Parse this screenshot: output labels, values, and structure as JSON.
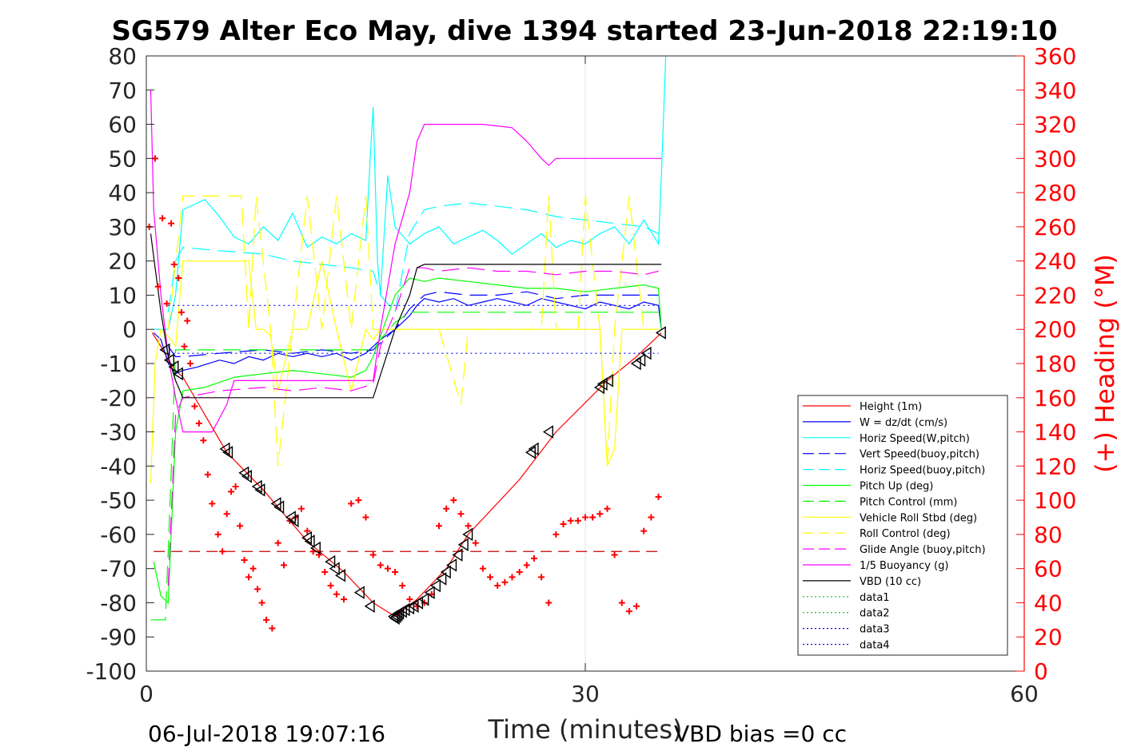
{
  "figure": {
    "footer_left": "06-Jul-2018 19:07:16",
    "footer_right": "VBD bias =0 cc"
  },
  "chart_data": {
    "type": "line",
    "title": "SG579 Alter Eco May, dive 1394 started 23-Jun-2018 22:19:10",
    "xlabel": "Time (minutes)",
    "ylabel": "",
    "y2label": "(+) Heading (°M)",
    "xlim": [
      0,
      60
    ],
    "ylim": [
      -100,
      80
    ],
    "y2lim": [
      0,
      360
    ],
    "xticks": [
      0,
      30,
      60
    ],
    "yticks": [
      -100,
      -90,
      -80,
      -70,
      -60,
      -50,
      -40,
      -30,
      -20,
      -10,
      0,
      10,
      20,
      30,
      40,
      50,
      60,
      70,
      80
    ],
    "y2ticks": [
      0,
      20,
      40,
      60,
      80,
      100,
      120,
      140,
      160,
      180,
      200,
      220,
      240,
      260,
      280,
      300,
      320,
      340,
      360
    ],
    "grid": "vertical at x ticks",
    "legend_position": "lower-right",
    "colors": {
      "y2_axis": "#ff0000"
    },
    "series": [
      {
        "name": "Height (1m)",
        "color": "#ff0000",
        "dash": "solid",
        "x": [
          0.4,
          1.0,
          1.5,
          2.0,
          2.5,
          5.5,
          8.0,
          11.0,
          13.5,
          15.5,
          17.0,
          18.5,
          20.5,
          22.0,
          25.5,
          28.0,
          31.5,
          33.5,
          35.2
        ],
        "y": [
          -1,
          -5,
          -9,
          -12,
          -14,
          -36,
          -47,
          -62,
          -71,
          -80,
          -84,
          -79,
          -70,
          -60,
          -44,
          -30,
          -15,
          -8,
          -1
        ]
      },
      {
        "name": "W = dz/dt (cm/s)",
        "color": "#0000ff",
        "dash": "solid",
        "x": [
          0.5,
          1.0,
          1.5,
          2.0,
          2.5,
          3.5,
          5,
          6,
          7,
          8,
          9,
          10,
          11,
          12,
          13,
          14,
          15,
          15.5,
          16,
          17,
          18,
          18.5,
          19,
          20,
          21,
          22,
          23,
          24,
          25,
          26,
          27,
          28,
          29,
          30,
          31,
          32,
          33,
          34,
          35,
          35.2
        ],
        "y": [
          -1,
          -3,
          -10,
          -13,
          -12,
          -11,
          -9,
          -10,
          -8,
          -9,
          -7,
          -8,
          -7,
          -8,
          -7,
          -9,
          -7,
          -5,
          -3,
          0,
          4,
          7,
          9,
          8,
          9,
          7,
          8,
          9,
          8,
          7,
          9,
          8,
          7,
          6,
          8,
          7,
          6,
          8,
          7,
          0
        ]
      },
      {
        "name": "Horiz Speed(W,pitch)",
        "color": "#00ffff",
        "dash": "solid",
        "x": [
          0.5,
          1.0,
          1.5,
          2.0,
          2.5,
          4,
          5,
          6,
          7,
          8,
          9,
          10,
          11,
          12,
          13,
          14,
          15,
          15.3,
          15.5,
          15.8,
          16,
          16.5,
          17,
          18,
          19,
          20,
          21,
          22,
          23,
          24,
          25,
          26,
          27,
          28,
          29,
          30,
          31,
          32,
          33,
          34,
          35,
          35.2,
          35.5
        ],
        "y": [
          0,
          0,
          0,
          10,
          35,
          38,
          33,
          27,
          25,
          30,
          26,
          34,
          24,
          27,
          25,
          28,
          26,
          50,
          65,
          20,
          10,
          45,
          30,
          25,
          28,
          30,
          25,
          27,
          29,
          26,
          22,
          25,
          28,
          24,
          26,
          25,
          28,
          30,
          25,
          32,
          25,
          45,
          80
        ]
      },
      {
        "name": "Vert Speed(buoy,pitch)",
        "color": "#0000ff",
        "dash": "long",
        "x": [
          1.5,
          2.0,
          2.5,
          5,
          8,
          10,
          12,
          14,
          15.5,
          16,
          17,
          18,
          19,
          20,
          22,
          24,
          26,
          28,
          30,
          32,
          34,
          35
        ],
        "y": [
          -5,
          -8,
          -8,
          -7,
          -6,
          -7,
          -6,
          -7,
          -6,
          -4,
          0,
          6,
          10,
          11,
          10,
          10,
          11,
          9,
          10,
          10,
          10,
          10
        ]
      },
      {
        "name": "Horiz Speed(buoy,pitch)",
        "color": "#00ffff",
        "dash": "long",
        "x": [
          1.5,
          2.0,
          2.5,
          5,
          8,
          10,
          12,
          14,
          15.5,
          16,
          17,
          18,
          19,
          20,
          22,
          24,
          26,
          28,
          30,
          32,
          34,
          35
        ],
        "y": [
          5,
          20,
          24,
          23,
          22,
          20,
          19,
          18,
          17,
          10,
          5,
          28,
          35,
          36,
          37,
          36,
          35,
          33,
          32,
          31,
          30,
          28
        ]
      },
      {
        "name": "Pitch Up (deg)",
        "color": "#00ff00",
        "dash": "solid",
        "x": [
          0.5,
          1.0,
          1.5,
          2.0,
          2.5,
          4,
          6,
          8,
          10,
          12,
          14,
          15,
          15.5,
          16,
          17,
          18,
          19,
          20,
          22,
          24,
          26,
          28,
          30,
          32,
          34,
          35,
          35.2
        ],
        "y": [
          -68,
          -78,
          -80,
          -30,
          -18,
          -17,
          -14,
          -13,
          -12,
          -13,
          -14,
          -12,
          -8,
          -2,
          10,
          15,
          14,
          15,
          14,
          13,
          12,
          12,
          11,
          12,
          13,
          12,
          0
        ]
      },
      {
        "name": "Pitch Control (mm)",
        "color": "#00ff00",
        "dash": "long",
        "x": [
          0.3,
          1.3,
          1.5,
          1.8,
          2.0,
          15.5,
          16,
          17,
          18,
          35
        ],
        "y": [
          -85,
          -85,
          -65,
          -30,
          -6,
          -6,
          -3,
          2,
          5,
          5
        ]
      },
      {
        "name": "Vehicle Roll Stbd (deg)",
        "color": "#ffff00",
        "dash": "solid",
        "x": [
          0.3,
          0.6,
          1.0,
          1.5,
          2.0,
          2.5,
          5,
          7,
          7.5,
          8,
          8.5,
          9,
          10,
          11,
          12,
          13,
          14,
          15,
          15.5,
          16,
          16.5,
          17,
          19,
          21,
          22,
          23,
          25,
          27,
          28,
          29,
          30,
          31,
          31.5,
          32,
          32.5,
          33,
          34,
          35
        ],
        "y": [
          -45,
          -10,
          0,
          -2,
          -5,
          20,
          20,
          20,
          0,
          0,
          -2,
          -18,
          0,
          0,
          20,
          0,
          -18,
          0,
          -3,
          0,
          0,
          0,
          0,
          0,
          0,
          0,
          0,
          0,
          0,
          0,
          0,
          0,
          -40,
          -35,
          0,
          0,
          0,
          0
        ]
      },
      {
        "name": "Roll Control (deg)",
        "color": "#ffff00",
        "dash": "long",
        "x": [
          1.5,
          2.5,
          5,
          6.5,
          7,
          7.5,
          8.5,
          9,
          10,
          11,
          12,
          13,
          14,
          15,
          15.5,
          16,
          17,
          18,
          20,
          21.5,
          22,
          23,
          25,
          27,
          27.5,
          28,
          29.5,
          30,
          31,
          31.5,
          32,
          33,
          34,
          35
        ],
        "y": [
          0,
          39,
          39,
          39,
          0,
          39,
          0,
          -40,
          0,
          39,
          0,
          39,
          0,
          39,
          0,
          0,
          0,
          0,
          0,
          -22,
          0,
          0,
          0,
          0,
          39,
          0,
          0,
          39,
          0,
          -40,
          0,
          39,
          0,
          0
        ]
      },
      {
        "name": "Glide Angle (buoy,pitch)",
        "color": "#ff00ff",
        "dash": "long",
        "x": [
          1.5,
          2.0,
          2.5,
          5,
          8,
          10,
          12,
          14,
          15.5,
          16,
          17,
          18,
          19,
          20,
          22,
          24,
          26,
          28,
          30,
          32,
          34,
          35
        ],
        "y": [
          -75,
          -25,
          -20,
          -18,
          -17,
          -18,
          -17,
          -18,
          -16,
          -5,
          5,
          18,
          18,
          17,
          18,
          17,
          17,
          16,
          17,
          17,
          16,
          17
        ]
      },
      {
        "name": "1/5 Buoyancy (g)",
        "color": "#ff00ff",
        "dash": "solid",
        "x": [
          0.3,
          0.5,
          1.0,
          1.5,
          2.0,
          2.5,
          3.5,
          4.5,
          5.5,
          6,
          8,
          12,
          15.5,
          16,
          17,
          18,
          18.5,
          19,
          20,
          23,
          25,
          26,
          27,
          27.5,
          28,
          30,
          32,
          33,
          35,
          35.2
        ],
        "y": [
          70,
          35,
          10,
          -8,
          -20,
          -30,
          -30,
          -30,
          -22,
          -15,
          -15,
          -15,
          -15,
          0,
          25,
          40,
          55,
          60,
          60,
          60,
          59,
          55,
          50,
          48,
          50,
          50,
          50,
          50,
          50,
          50
        ]
      },
      {
        "name": "VBD (10 cc)",
        "color": "#000000",
        "dash": "solid",
        "x": [
          0.3,
          0.6,
          1.0,
          1.5,
          2.0,
          2.5,
          15.5,
          17,
          18,
          18.5,
          19,
          35.2
        ],
        "y": [
          28,
          18,
          5,
          -8,
          -15,
          -20,
          -20,
          0,
          10,
          18,
          19,
          19
        ]
      },
      {
        "name": "data1",
        "color": "#00cc00",
        "dash": "dotted",
        "x": [],
        "y": []
      },
      {
        "name": "data2",
        "color": "#00cc00",
        "dash": "dotted",
        "x": [],
        "y": []
      },
      {
        "name": "data3",
        "color": "#0000ff",
        "dash": "dotted",
        "x": [
          1.5,
          35
        ],
        "y": [
          7,
          7
        ]
      },
      {
        "name": "data4",
        "color": "#0000ff",
        "dash": "dotted",
        "x": [
          1.5,
          35
        ],
        "y": [
          -7,
          -7
        ]
      }
    ],
    "heading_reference": {
      "color": "#cc0000",
      "y2": 70,
      "x": [
        0.5,
        35
      ]
    },
    "heading_points": {
      "color": "#ff0000",
      "marker": "+",
      "x": [
        0.2,
        0.6,
        0.8,
        1.1,
        1.4,
        1.7,
        1.9,
        2.2,
        2.4,
        2.6,
        2.8,
        3.0,
        3.3,
        3.6,
        3.9,
        4.2,
        4.5,
        4.9,
        5.2,
        5.5,
        5.8,
        6.1,
        6.4,
        6.7,
        7.0,
        7.3,
        7.6,
        7.9,
        8.2,
        8.6,
        9.0,
        9.4,
        9.8,
        10.2,
        10.6,
        11.0,
        11.4,
        11.8,
        12.2,
        12.6,
        13.0,
        13.5,
        14.0,
        14.5,
        15.0,
        15.5,
        16.0,
        16.5,
        17.0,
        17.5,
        18.0,
        18.5,
        19.0,
        19.5,
        20.0,
        20.5,
        21.0,
        21.5,
        22.0,
        22.5,
        23.0,
        23.5,
        24.0,
        24.5,
        25.0,
        25.5,
        26.0,
        26.5,
        27.0,
        27.5,
        28.0,
        28.5,
        29.0,
        29.5,
        30.0,
        30.5,
        31.0,
        31.5,
        32.0,
        32.5,
        33.0,
        33.5,
        34.0,
        34.5,
        35.0
      ],
      "y2": [
        260,
        300,
        225,
        265,
        215,
        262,
        238,
        230,
        210,
        190,
        205,
        180,
        155,
        145,
        135,
        115,
        98,
        80,
        70,
        92,
        105,
        108,
        85,
        65,
        55,
        60,
        48,
        40,
        30,
        25,
        75,
        62,
        88,
        90,
        95,
        82,
        70,
        68,
        58,
        50,
        45,
        42,
        98,
        100,
        90,
        68,
        62,
        60,
        58,
        50,
        42,
        38,
        40,
        45,
        85,
        95,
        100,
        92,
        85,
        75,
        60,
        55,
        50,
        52,
        55,
        58,
        62,
        66,
        55,
        40,
        80,
        86,
        88,
        88,
        90,
        90,
        92,
        95,
        68,
        40,
        35,
        38,
        82,
        90,
        102
      ]
    },
    "triangle_points": {
      "color": "#000000",
      "marker": "triangle-left",
      "x": [
        1.3,
        1.6,
        1.9,
        2.2,
        5.4,
        5.6,
        6.7,
        6.9,
        7.6,
        7.8,
        8.9,
        9.1,
        9.9,
        10.1,
        11.0,
        11.2,
        11.6,
        12.6,
        12.9,
        13.3,
        14.6,
        15.3,
        16.9,
        17.0,
        17.1,
        17.2,
        17.3,
        17.5,
        17.7,
        18.0,
        18.3,
        18.6,
        19.0,
        19.4,
        19.8,
        20.2,
        20.5,
        20.9,
        21.3,
        21.7,
        22.0,
        26.3,
        26.5,
        27.5,
        31.0,
        31.2,
        31.6,
        33.5,
        33.8,
        34.2,
        35.2
      ],
      "y": [
        -6,
        -9,
        -11,
        -13,
        -35,
        -36,
        -42,
        -43,
        -46,
        -47,
        -51,
        -52,
        -55,
        -56,
        -61,
        -62,
        -64,
        -68,
        -70,
        -72,
        -77,
        -81,
        -84,
        -84.5,
        -84,
        -83.5,
        -83,
        -82.5,
        -82,
        -81.5,
        -81,
        -80,
        -79,
        -77,
        -75,
        -73,
        -71,
        -69,
        -66,
        -63,
        -60,
        -36,
        -35,
        -30,
        -17,
        -16,
        -15,
        -10,
        -9,
        -7,
        -1
      ]
    }
  }
}
